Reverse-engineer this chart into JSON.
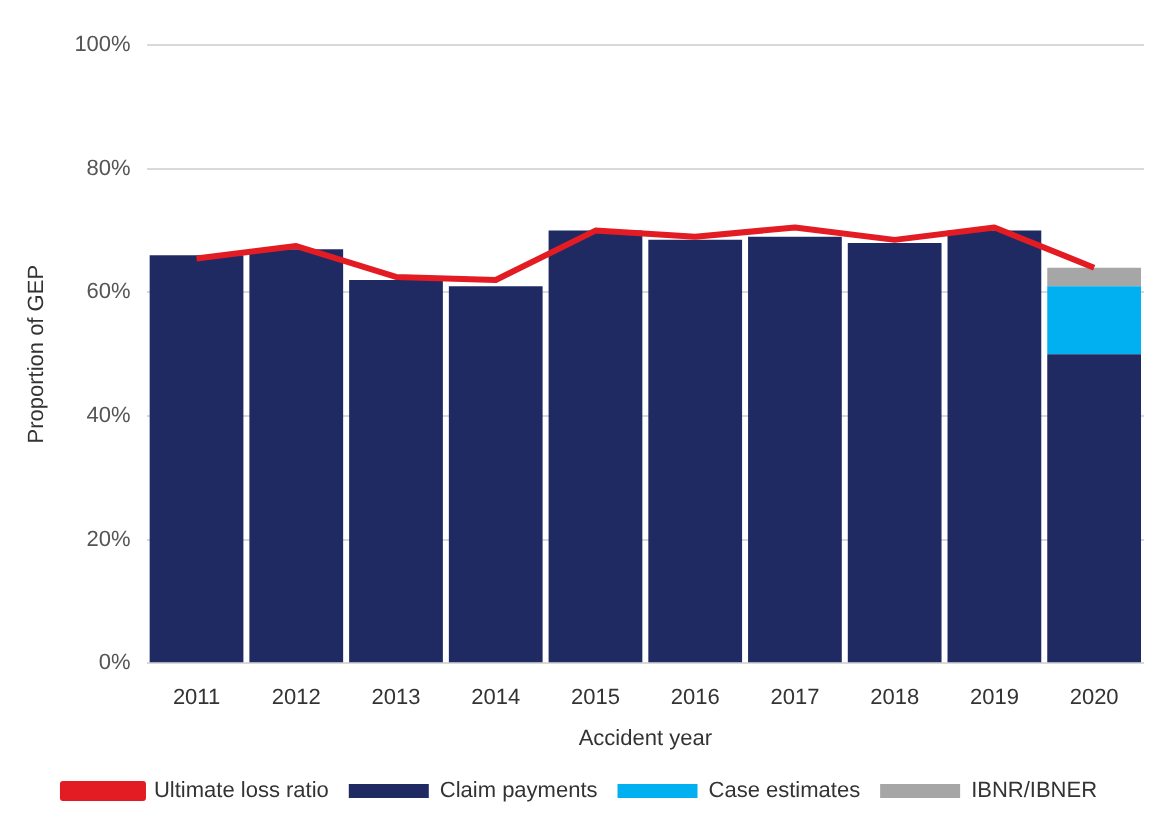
{
  "chart_data": {
    "type": "bar",
    "stacked": true,
    "xlabel": "Accident year",
    "ylabel": "Proportion of GEP",
    "categories": [
      "2011",
      "2012",
      "2013",
      "2014",
      "2015",
      "2016",
      "2017",
      "2018",
      "2019",
      "2020"
    ],
    "series": [
      {
        "name": "Claim payments",
        "color": "#1f2a63",
        "values": [
          66,
          67,
          62,
          61,
          70,
          68.5,
          69,
          68,
          70,
          50
        ]
      },
      {
        "name": "Case estimates",
        "color": "#00b0f0",
        "values": [
          0,
          0,
          0,
          0,
          0,
          0,
          0,
          0,
          0,
          11
        ]
      },
      {
        "name": "IBNR/IBNER",
        "color": "#a6a6a6",
        "values": [
          0,
          0,
          0,
          0,
          0,
          0,
          0,
          0,
          0,
          3
        ]
      },
      {
        "name": "Ultimate loss ratio",
        "type": "line",
        "color": "#e31b23",
        "values": [
          65.5,
          67.5,
          62.5,
          62,
          70,
          69,
          70.5,
          68.5,
          70.5,
          64
        ]
      }
    ],
    "ylim": [
      0,
      100
    ],
    "yticks": [
      {
        "value": 0,
        "label": "0%"
      },
      {
        "value": 20,
        "label": "20%"
      },
      {
        "value": 40,
        "label": "40%"
      },
      {
        "value": 60,
        "label": "60%"
      },
      {
        "value": 80,
        "label": "80%"
      },
      {
        "value": 100,
        "label": "100%"
      }
    ],
    "grid": "y",
    "legend": "bottom"
  }
}
